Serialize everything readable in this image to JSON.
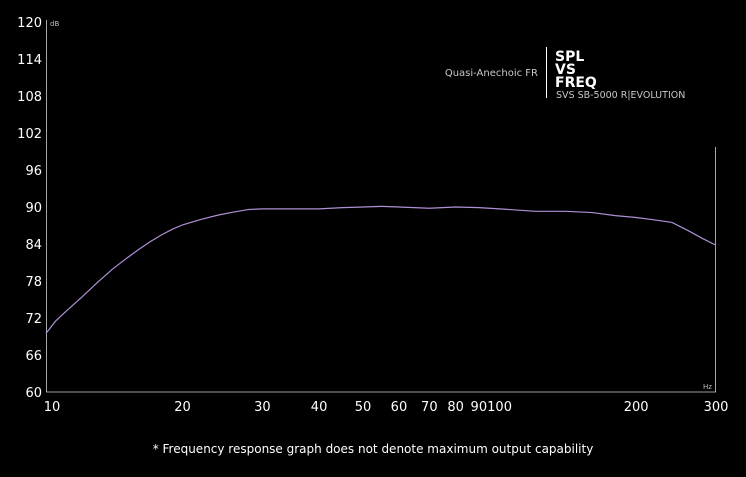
{
  "chart_data": {
    "type": "line",
    "title": "SPL VS FREQ",
    "title_lines": [
      "SPL",
      "VS",
      "FREQ"
    ],
    "subtitle": "SVS SB-5000 R|EVOLUTION",
    "series_label": "Quasi-Anechoic FR",
    "xlabel": "Hz",
    "ylabel": "dB",
    "x_scale": "log",
    "xlim": [
      10,
      300
    ],
    "ylim": [
      60,
      120
    ],
    "x_ticks": [
      10,
      20,
      30,
      40,
      50,
      60,
      70,
      80,
      90,
      100,
      200,
      300
    ],
    "y_ticks": [
      60,
      66,
      72,
      78,
      84,
      90,
      96,
      102,
      108,
      114,
      120
    ],
    "grid": false,
    "line_color": "#b08fd6",
    "series": [
      {
        "name": "Quasi-Anechoic FR",
        "x": [
          10,
          10.5,
          11,
          12,
          13,
          14,
          15,
          16,
          17,
          18,
          19,
          20,
          22,
          24,
          26,
          28,
          30,
          35,
          40,
          45,
          50,
          55,
          60,
          70,
          80,
          90,
          100,
          120,
          140,
          160,
          180,
          200,
          220,
          240,
          260,
          280,
          300
        ],
        "y": [
          69.5,
          71.5,
          72.9,
          75.4,
          77.8,
          79.9,
          81.6,
          83.1,
          84.4,
          85.5,
          86.4,
          87.1,
          88.0,
          88.7,
          89.2,
          89.6,
          89.7,
          89.7,
          89.7,
          89.9,
          90.0,
          90.1,
          90.0,
          89.8,
          90.0,
          89.9,
          89.7,
          89.3,
          89.3,
          89.1,
          88.6,
          88.3,
          87.9,
          87.5,
          86.2,
          84.9,
          83.8
        ]
      }
    ]
  },
  "footnote": "* Frequency response graph does not denote maximum output capability"
}
